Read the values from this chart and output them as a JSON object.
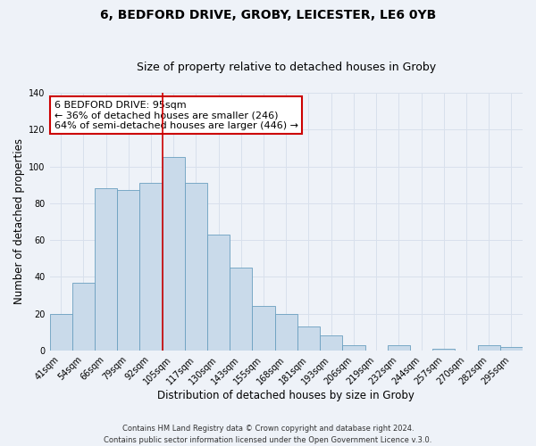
{
  "title": "6, BEDFORD DRIVE, GROBY, LEICESTER, LE6 0YB",
  "subtitle": "Size of property relative to detached houses in Groby",
  "xlabel": "Distribution of detached houses by size in Groby",
  "ylabel": "Number of detached properties",
  "bar_color": "#c9daea",
  "bar_edge_color": "#6a9fc0",
  "background_color": "#eef2f8",
  "grid_color": "#d8e0ec",
  "categories": [
    "41sqm",
    "54sqm",
    "66sqm",
    "79sqm",
    "92sqm",
    "105sqm",
    "117sqm",
    "130sqm",
    "143sqm",
    "155sqm",
    "168sqm",
    "181sqm",
    "193sqm",
    "206sqm",
    "219sqm",
    "232sqm",
    "244sqm",
    "257sqm",
    "270sqm",
    "282sqm",
    "295sqm"
  ],
  "values": [
    20,
    37,
    88,
    87,
    91,
    105,
    91,
    63,
    45,
    24,
    20,
    13,
    8,
    3,
    0,
    3,
    0,
    1,
    0,
    3,
    2
  ],
  "vline_x_index": 4.5,
  "vline_color": "#cc0000",
  "ylim": [
    0,
    140
  ],
  "yticks": [
    0,
    20,
    40,
    60,
    80,
    100,
    120,
    140
  ],
  "annotation_text": "6 BEDFORD DRIVE: 95sqm\n← 36% of detached houses are smaller (246)\n64% of semi-detached houses are larger (446) →",
  "annotation_box_color": "#ffffff",
  "annotation_box_edge_color": "#cc0000",
  "footer_line1": "Contains HM Land Registry data © Crown copyright and database right 2024.",
  "footer_line2": "Contains public sector information licensed under the Open Government Licence v.3.0.",
  "title_fontsize": 10,
  "subtitle_fontsize": 9,
  "axis_label_fontsize": 8.5,
  "tick_fontsize": 7,
  "annotation_fontsize": 8,
  "footer_fontsize": 6
}
